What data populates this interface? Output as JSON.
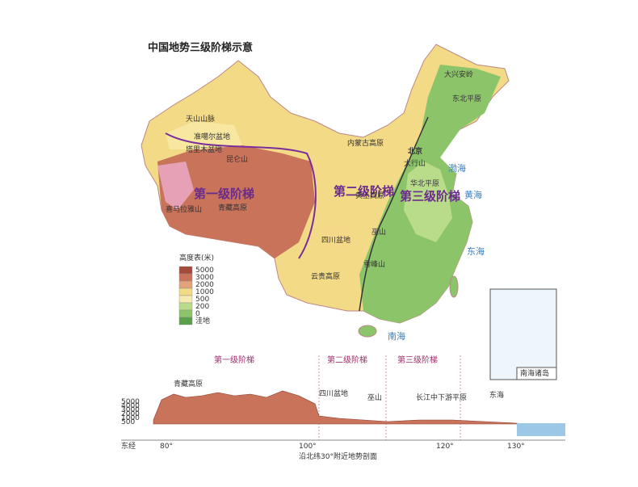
{
  "map": {
    "title": "中国地势三级阶梯示意",
    "steps": [
      "第一级阶梯",
      "第二级阶梯",
      "第三级阶梯"
    ],
    "places": [
      "天山山脉",
      "准噶尔盆地",
      "塔里木盆地",
      "内蒙古高原",
      "黄土高原",
      "四川盆地",
      "云贵高原",
      "青藏高原",
      "华北平原",
      "东北平原",
      "北京",
      "喜马拉雅山",
      "昆仑山",
      "大兴安岭",
      "太行山",
      "巫山",
      "雪峰山"
    ],
    "seas": [
      "渤海",
      "黄海",
      "东海",
      "南海"
    ],
    "legend": {
      "title": "高度表(米)",
      "levels": [
        5000,
        3000,
        2000,
        1000,
        500,
        200,
        0
      ],
      "depression": "洼地"
    },
    "inset": "南海诸岛",
    "section": {
      "title": "沿北纬30°附近地势剖面",
      "headers": [
        "第一级阶梯",
        "第二级阶梯",
        "第三级阶梯"
      ],
      "regions": [
        "青藏高原",
        "四川盆地",
        "巫山",
        "长江中下游平原",
        "东海"
      ],
      "xaxis": "东经",
      "xticks": [
        "80°",
        "100°",
        "120°",
        "130°"
      ],
      "yticks": [
        5000,
        4000,
        3000,
        2000,
        1000,
        500
      ]
    }
  }
}
